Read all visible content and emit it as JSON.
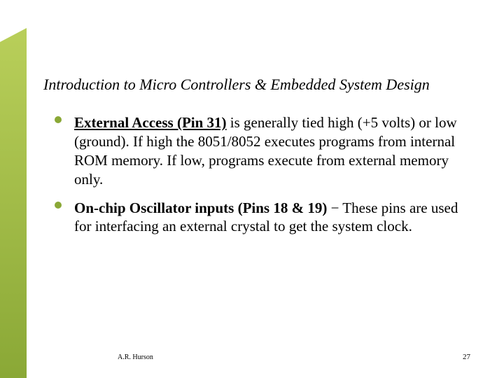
{
  "accent": {
    "gradient_top": "#b9cf5a",
    "gradient_bottom": "#8aa836"
  },
  "title": "Introduction to Micro Controllers & Embedded System Design",
  "bullets": [
    {
      "lead_bold_underline": "External Access (Pin 31)",
      "rest": " is generally tied high (+5 volts) or low (ground).  If high the 8051/8052 executes programs from internal ROM memory. If low, programs execute from external memory only."
    },
    {
      "lead_bold": "On-chip Oscillator inputs (Pins 18 & 19)",
      "dash": " − ",
      "rest": "These pins are used for interfacing an external crystal to get the system clock."
    }
  ],
  "footer": {
    "author": "A.R. Hurson",
    "page": "27"
  },
  "typography": {
    "title_fontsize_pt": 17,
    "body_fontsize_pt": 16,
    "footer_fontsize_pt": 8
  },
  "colors": {
    "background": "#ffffff",
    "text": "#000000",
    "bullet": "#8aa836"
  }
}
